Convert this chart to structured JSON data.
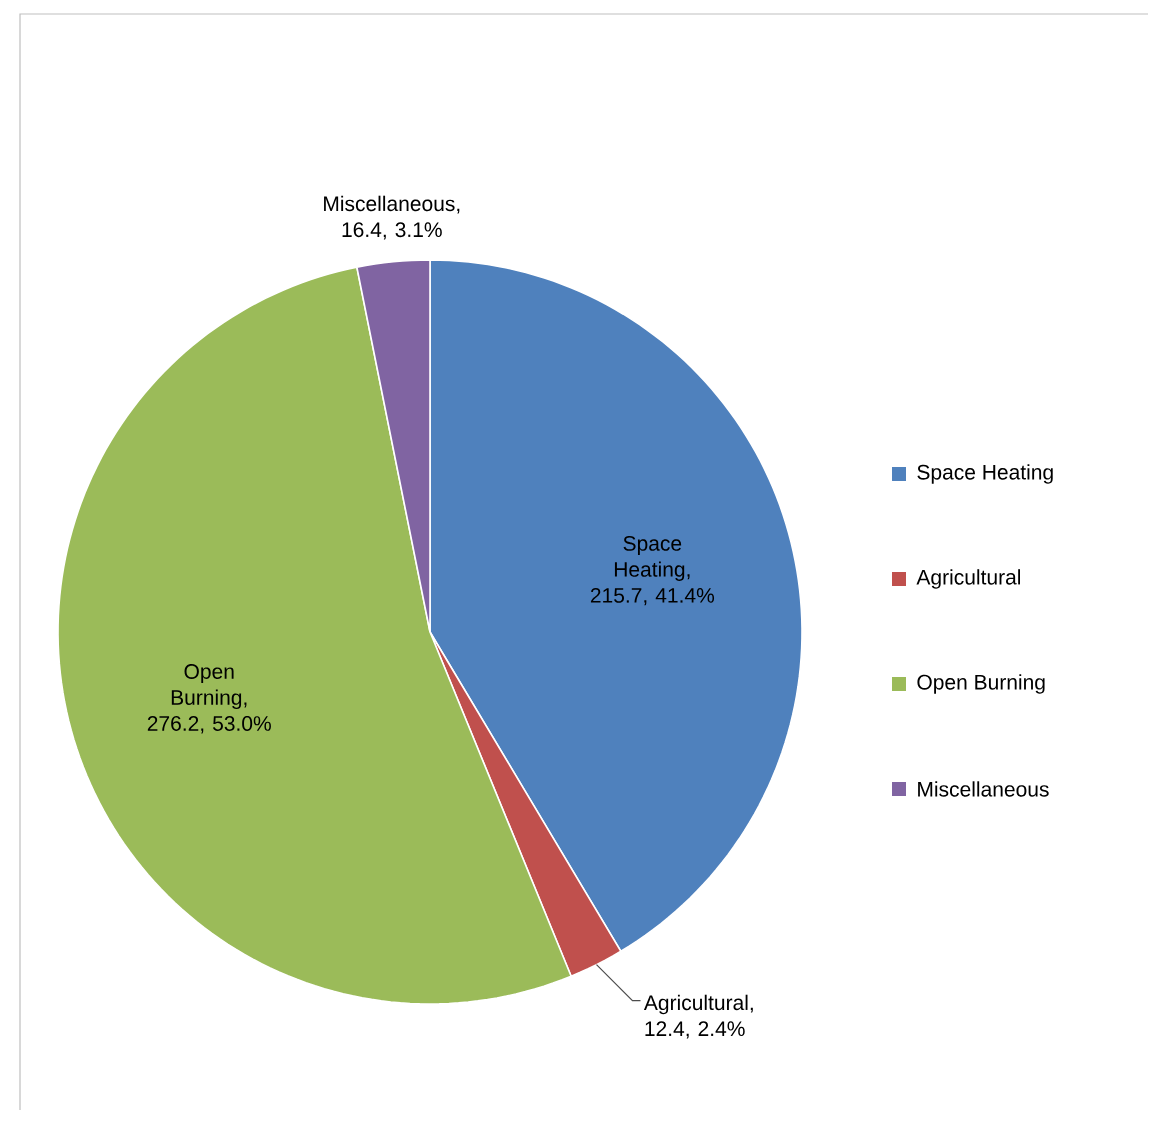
{
  "chart_data": {
    "type": "pie",
    "categories": [
      "Space Heating",
      "Agricultural",
      "Open  Burning",
      "Miscellaneous"
    ],
    "values": [
      215.7,
      12.4,
      276.2,
      16.4
    ],
    "colors": [
      "#4f81bd",
      "#c0504d",
      "#9bbb59",
      "#8064a2"
    ],
    "value_labels": [
      "Space Heating, 215.7, 41.4%",
      "Agricultural, 12.4, 2.4%",
      "Open Burning, 276.2, 53.0%",
      "Miscellaneous, 16.4, 3.1%"
    ],
    "legend": "right"
  }
}
